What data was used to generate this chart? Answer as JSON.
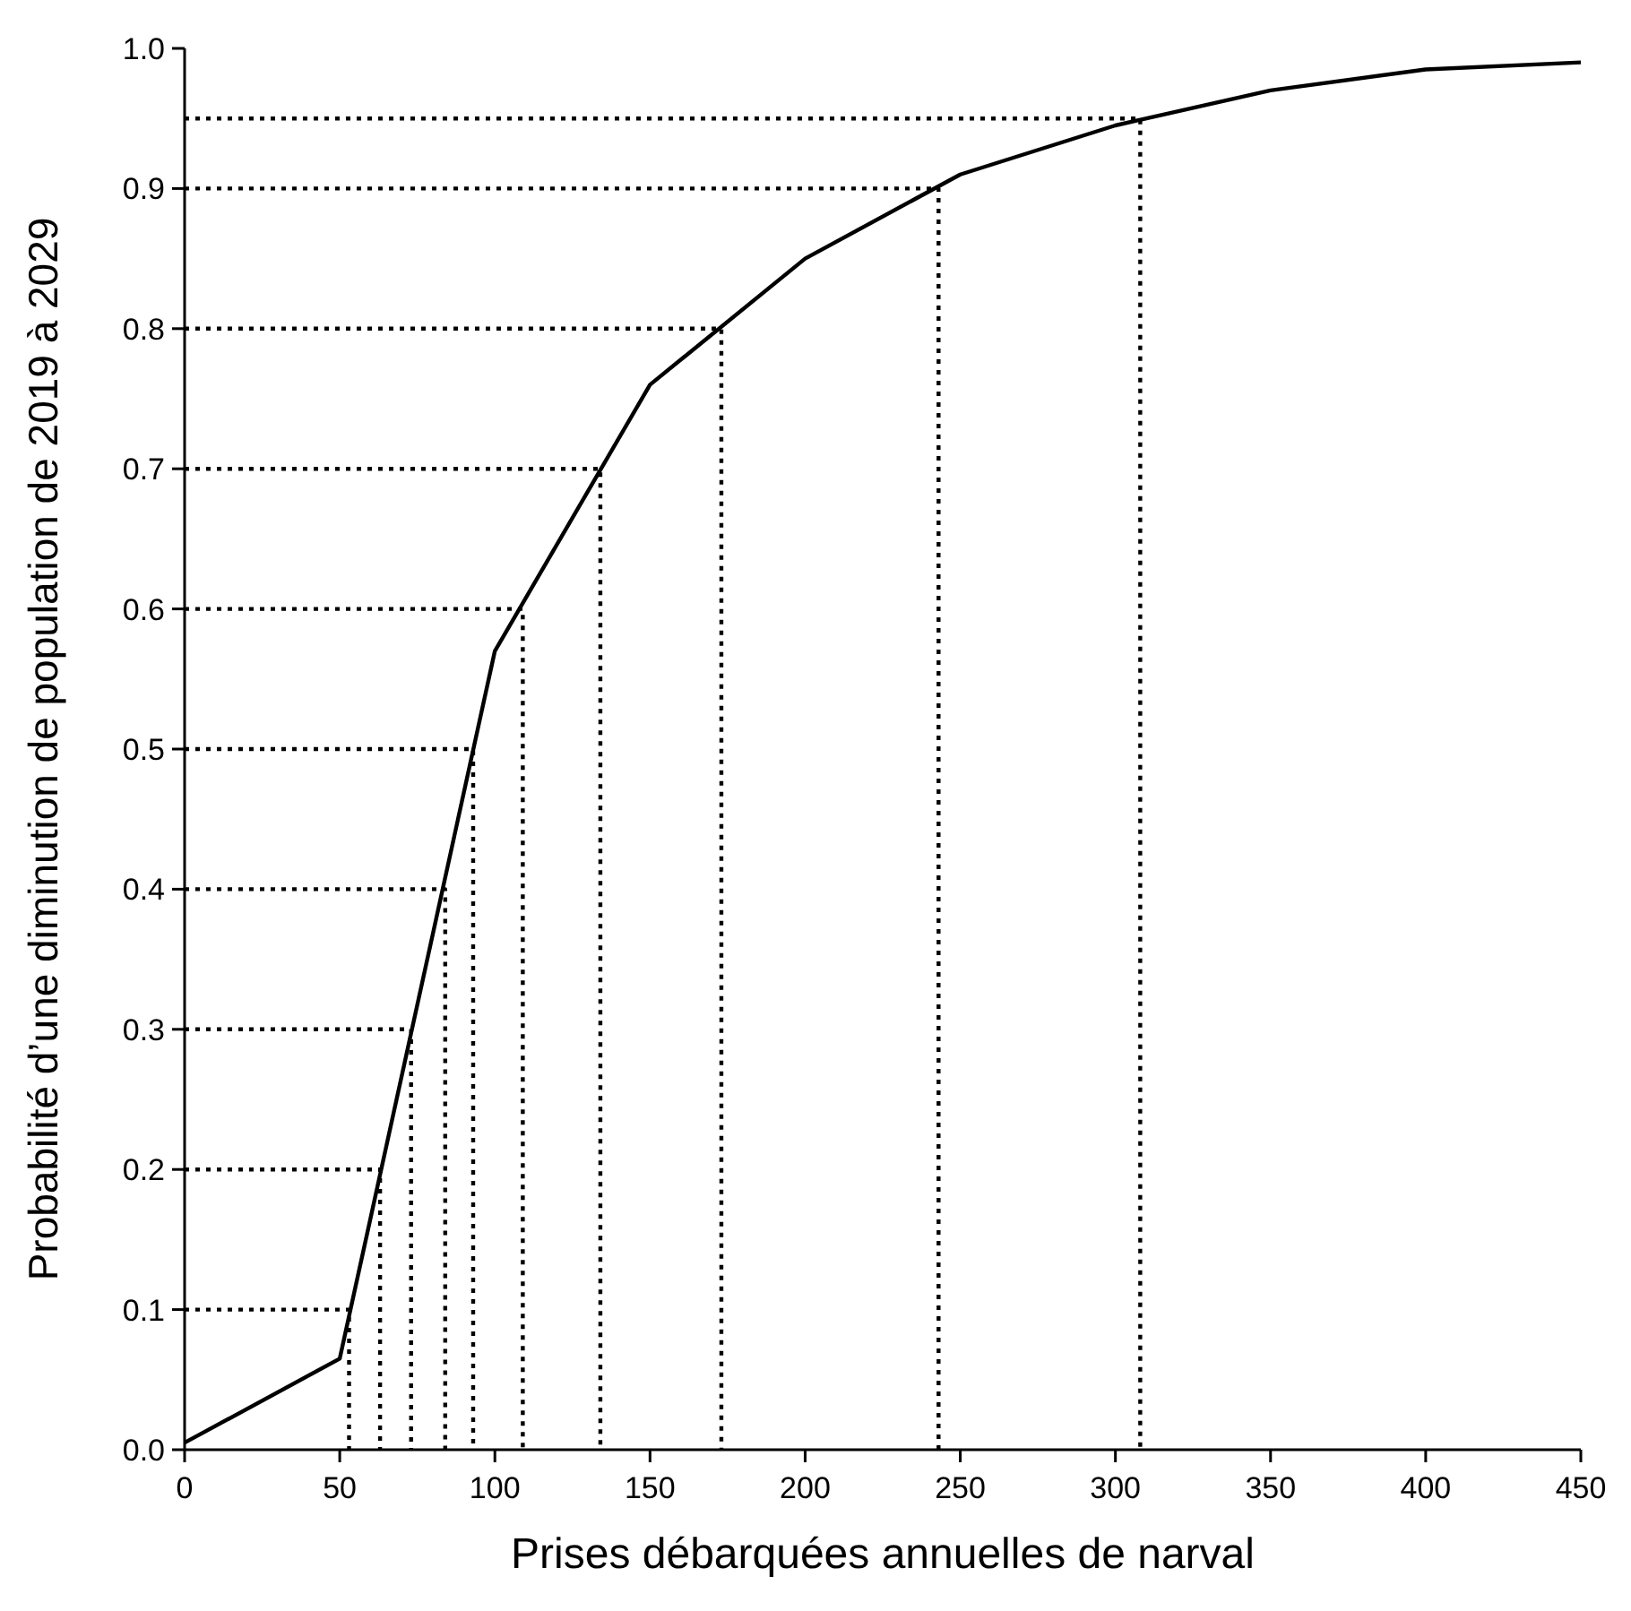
{
  "chart_data": {
    "type": "line",
    "xlabel": "Prises débarquées annuelles de narval",
    "ylabel": "Probabilité d’une diminution de population de 2019 à 2029",
    "xlim": [
      0,
      450
    ],
    "ylim": [
      0,
      1
    ],
    "xticks": [
      0,
      50,
      100,
      150,
      200,
      250,
      300,
      350,
      400,
      450
    ],
    "yticks": [
      {
        "value": 0,
        "label": "0.0"
      },
      0.1,
      0.2,
      0.3,
      0.4,
      0.5,
      0.6,
      0.7,
      0.8,
      0.9,
      {
        "value": 1,
        "label": "1.0"
      }
    ],
    "marker": "none",
    "series": [
      {
        "color": "#000000",
        "line_style": "solid",
        "x": [
          0,
          50,
          100,
          150,
          200,
          250,
          300,
          350,
          400,
          450
        ],
        "values": [
          0.005,
          0.065,
          0.57,
          0.76,
          0.85,
          0.91,
          0.945,
          0.97,
          0.985,
          0.99
        ]
      },
      {
        "color": "#000000",
        "line_style": "dotted",
        "x": [
          0,
          53,
          53
        ],
        "values": [
          0.1,
          0.1,
          0
        ]
      },
      {
        "color": "#000000",
        "line_style": "dotted",
        "x": [
          0,
          63,
          63
        ],
        "values": [
          0.2,
          0.2,
          0
        ]
      },
      {
        "color": "#000000",
        "line_style": "dotted",
        "x": [
          0,
          73,
          73
        ],
        "values": [
          0.3,
          0.3,
          0
        ]
      },
      {
        "color": "#000000",
        "line_style": "dotted",
        "x": [
          0,
          84,
          84
        ],
        "values": [
          0.4,
          0.4,
          0
        ]
      },
      {
        "color": "#000000",
        "line_style": "dotted",
        "x": [
          0,
          93,
          93
        ],
        "values": [
          0.5,
          0.5,
          0
        ]
      },
      {
        "color": "#000000",
        "line_style": "dotted",
        "x": [
          0,
          109,
          109
        ],
        "values": [
          0.6,
          0.6,
          0
        ]
      },
      {
        "color": "#000000",
        "line_style": "dotted",
        "x": [
          0,
          134,
          134
        ],
        "values": [
          0.7,
          0.7,
          0
        ]
      },
      {
        "color": "#000000",
        "line_style": "dotted",
        "x": [
          0,
          173,
          173
        ],
        "values": [
          0.8,
          0.8,
          0
        ]
      },
      {
        "color": "#000000",
        "line_style": "dotted",
        "x": [
          0,
          243,
          243
        ],
        "values": [
          0.9,
          0.9,
          0
        ]
      },
      {
        "color": "#000000",
        "line_style": "dotted",
        "x": [
          0,
          308,
          308
        ],
        "values": [
          0.95,
          0.95,
          0
        ]
      }
    ]
  }
}
